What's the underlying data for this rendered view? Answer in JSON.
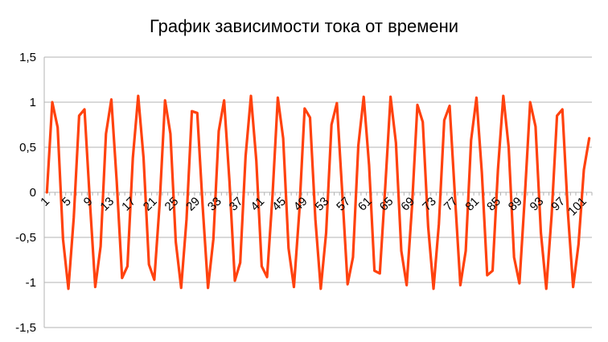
{
  "chart_data": {
    "type": "line",
    "title": "График зависимости тока от времени",
    "xlabel": "",
    "ylabel": "",
    "ylim": [
      -1.5,
      1.5
    ],
    "yticks": [
      "1,5",
      "1",
      "0,5",
      "0",
      "-0,5",
      "-1",
      "-1,5"
    ],
    "ytick_values": [
      1.5,
      1,
      0.5,
      0,
      -0.5,
      -1,
      -1.5
    ],
    "grid": true,
    "legend": "none",
    "x_tick_labels": [
      1,
      5,
      9,
      13,
      17,
      21,
      25,
      29,
      33,
      37,
      41,
      45,
      49,
      53,
      57,
      61,
      65,
      69,
      73,
      77,
      81,
      85,
      89,
      93,
      97,
      101
    ],
    "series": [
      {
        "color": "#ff420e",
        "x": [
          1,
          2,
          3,
          4,
          5,
          6,
          7,
          8,
          9,
          10,
          11,
          12,
          13,
          14,
          15,
          16,
          17,
          18,
          19,
          20,
          21,
          22,
          23,
          24,
          25,
          26,
          27,
          28,
          29,
          30,
          31,
          32,
          33,
          34,
          35,
          36,
          37,
          38,
          39,
          40,
          41,
          42,
          43,
          44,
          45,
          46,
          47,
          48,
          49,
          50,
          51,
          52,
          53,
          54,
          55,
          56,
          57,
          58,
          59,
          60,
          61,
          62,
          63,
          64,
          65,
          66,
          67,
          68,
          69,
          70,
          71,
          72,
          73,
          74,
          75,
          76,
          77,
          78,
          79,
          80,
          81,
          82,
          83,
          84,
          85,
          86,
          87,
          88,
          89,
          90,
          91,
          92,
          93,
          94,
          95,
          96,
          97,
          98,
          99,
          100,
          101,
          102
        ],
        "values": [
          0.0,
          1.0,
          0.72,
          -0.52,
          -1.07,
          -0.28,
          0.85,
          0.92,
          -0.1,
          -1.05,
          -0.6,
          0.65,
          1.03,
          0.12,
          -0.95,
          -0.82,
          0.38,
          1.07,
          0.38,
          -0.8,
          -0.97,
          -0.12,
          1.02,
          0.65,
          -0.55,
          -1.06,
          -0.3,
          0.9,
          0.88,
          -0.15,
          -1.06,
          -0.52,
          0.68,
          1.02,
          0.12,
          -0.98,
          -0.78,
          0.4,
          1.07,
          0.35,
          -0.82,
          -0.94,
          -0.05,
          1.05,
          0.6,
          -0.62,
          -1.05,
          -0.22,
          0.93,
          0.83,
          -0.3,
          -1.07,
          -0.45,
          0.75,
          0.99,
          0.0,
          -1.02,
          -0.72,
          0.52,
          1.06,
          0.3,
          -0.87,
          -0.9,
          0.05,
          1.06,
          0.55,
          -0.65,
          -1.03,
          -0.15,
          0.97,
          0.78,
          -0.38,
          -1.07,
          -0.35,
          0.8,
          0.96,
          -0.05,
          -1.03,
          -0.65,
          0.58,
          1.05,
          0.22,
          -0.92,
          -0.87,
          0.25,
          1.07,
          0.5,
          -0.72,
          -1.01,
          -0.05,
          1.0,
          0.73,
          -0.45,
          -1.07,
          -0.25,
          0.85,
          0.92,
          -0.2,
          -1.05,
          -0.58,
          0.25,
          0.6
        ]
      }
    ]
  }
}
